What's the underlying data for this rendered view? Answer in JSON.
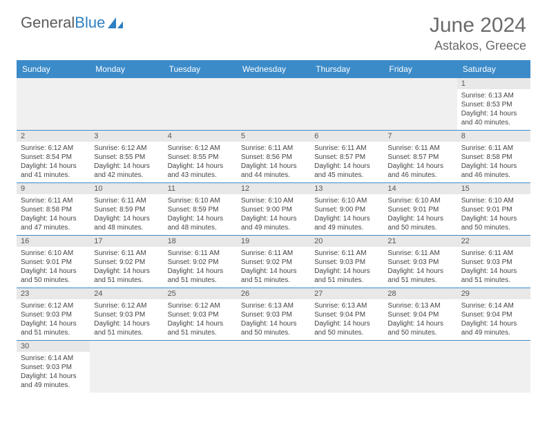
{
  "brand": {
    "part1": "General",
    "part2": "Blue"
  },
  "title": "June 2024",
  "location": "Astakos, Greece",
  "colors": {
    "headerBg": "#3b8bc9",
    "headerText": "#ffffff",
    "dayBarBg": "#e8e8e8",
    "emptyBg": "#f0f0f0",
    "borderColor": "#3b8bc9",
    "bodyText": "#444444",
    "titleText": "#6a6a6a"
  },
  "dayNames": [
    "Sunday",
    "Monday",
    "Tuesday",
    "Wednesday",
    "Thursday",
    "Friday",
    "Saturday"
  ],
  "weeks": [
    [
      null,
      null,
      null,
      null,
      null,
      null,
      {
        "n": "1",
        "sr": "Sunrise: 6:13 AM",
        "ss": "Sunset: 8:53 PM",
        "d1": "Daylight: 14 hours",
        "d2": "and 40 minutes."
      }
    ],
    [
      {
        "n": "2",
        "sr": "Sunrise: 6:12 AM",
        "ss": "Sunset: 8:54 PM",
        "d1": "Daylight: 14 hours",
        "d2": "and 41 minutes."
      },
      {
        "n": "3",
        "sr": "Sunrise: 6:12 AM",
        "ss": "Sunset: 8:55 PM",
        "d1": "Daylight: 14 hours",
        "d2": "and 42 minutes."
      },
      {
        "n": "4",
        "sr": "Sunrise: 6:12 AM",
        "ss": "Sunset: 8:55 PM",
        "d1": "Daylight: 14 hours",
        "d2": "and 43 minutes."
      },
      {
        "n": "5",
        "sr": "Sunrise: 6:11 AM",
        "ss": "Sunset: 8:56 PM",
        "d1": "Daylight: 14 hours",
        "d2": "and 44 minutes."
      },
      {
        "n": "6",
        "sr": "Sunrise: 6:11 AM",
        "ss": "Sunset: 8:57 PM",
        "d1": "Daylight: 14 hours",
        "d2": "and 45 minutes."
      },
      {
        "n": "7",
        "sr": "Sunrise: 6:11 AM",
        "ss": "Sunset: 8:57 PM",
        "d1": "Daylight: 14 hours",
        "d2": "and 46 minutes."
      },
      {
        "n": "8",
        "sr": "Sunrise: 6:11 AM",
        "ss": "Sunset: 8:58 PM",
        "d1": "Daylight: 14 hours",
        "d2": "and 46 minutes."
      }
    ],
    [
      {
        "n": "9",
        "sr": "Sunrise: 6:11 AM",
        "ss": "Sunset: 8:58 PM",
        "d1": "Daylight: 14 hours",
        "d2": "and 47 minutes."
      },
      {
        "n": "10",
        "sr": "Sunrise: 6:11 AM",
        "ss": "Sunset: 8:59 PM",
        "d1": "Daylight: 14 hours",
        "d2": "and 48 minutes."
      },
      {
        "n": "11",
        "sr": "Sunrise: 6:10 AM",
        "ss": "Sunset: 8:59 PM",
        "d1": "Daylight: 14 hours",
        "d2": "and 48 minutes."
      },
      {
        "n": "12",
        "sr": "Sunrise: 6:10 AM",
        "ss": "Sunset: 9:00 PM",
        "d1": "Daylight: 14 hours",
        "d2": "and 49 minutes."
      },
      {
        "n": "13",
        "sr": "Sunrise: 6:10 AM",
        "ss": "Sunset: 9:00 PM",
        "d1": "Daylight: 14 hours",
        "d2": "and 49 minutes."
      },
      {
        "n": "14",
        "sr": "Sunrise: 6:10 AM",
        "ss": "Sunset: 9:01 PM",
        "d1": "Daylight: 14 hours",
        "d2": "and 50 minutes."
      },
      {
        "n": "15",
        "sr": "Sunrise: 6:10 AM",
        "ss": "Sunset: 9:01 PM",
        "d1": "Daylight: 14 hours",
        "d2": "and 50 minutes."
      }
    ],
    [
      {
        "n": "16",
        "sr": "Sunrise: 6:10 AM",
        "ss": "Sunset: 9:01 PM",
        "d1": "Daylight: 14 hours",
        "d2": "and 50 minutes."
      },
      {
        "n": "17",
        "sr": "Sunrise: 6:11 AM",
        "ss": "Sunset: 9:02 PM",
        "d1": "Daylight: 14 hours",
        "d2": "and 51 minutes."
      },
      {
        "n": "18",
        "sr": "Sunrise: 6:11 AM",
        "ss": "Sunset: 9:02 PM",
        "d1": "Daylight: 14 hours",
        "d2": "and 51 minutes."
      },
      {
        "n": "19",
        "sr": "Sunrise: 6:11 AM",
        "ss": "Sunset: 9:02 PM",
        "d1": "Daylight: 14 hours",
        "d2": "and 51 minutes."
      },
      {
        "n": "20",
        "sr": "Sunrise: 6:11 AM",
        "ss": "Sunset: 9:03 PM",
        "d1": "Daylight: 14 hours",
        "d2": "and 51 minutes."
      },
      {
        "n": "21",
        "sr": "Sunrise: 6:11 AM",
        "ss": "Sunset: 9:03 PM",
        "d1": "Daylight: 14 hours",
        "d2": "and 51 minutes."
      },
      {
        "n": "22",
        "sr": "Sunrise: 6:11 AM",
        "ss": "Sunset: 9:03 PM",
        "d1": "Daylight: 14 hours",
        "d2": "and 51 minutes."
      }
    ],
    [
      {
        "n": "23",
        "sr": "Sunrise: 6:12 AM",
        "ss": "Sunset: 9:03 PM",
        "d1": "Daylight: 14 hours",
        "d2": "and 51 minutes."
      },
      {
        "n": "24",
        "sr": "Sunrise: 6:12 AM",
        "ss": "Sunset: 9:03 PM",
        "d1": "Daylight: 14 hours",
        "d2": "and 51 minutes."
      },
      {
        "n": "25",
        "sr": "Sunrise: 6:12 AM",
        "ss": "Sunset: 9:03 PM",
        "d1": "Daylight: 14 hours",
        "d2": "and 51 minutes."
      },
      {
        "n": "26",
        "sr": "Sunrise: 6:13 AM",
        "ss": "Sunset: 9:03 PM",
        "d1": "Daylight: 14 hours",
        "d2": "and 50 minutes."
      },
      {
        "n": "27",
        "sr": "Sunrise: 6:13 AM",
        "ss": "Sunset: 9:04 PM",
        "d1": "Daylight: 14 hours",
        "d2": "and 50 minutes."
      },
      {
        "n": "28",
        "sr": "Sunrise: 6:13 AM",
        "ss": "Sunset: 9:04 PM",
        "d1": "Daylight: 14 hours",
        "d2": "and 50 minutes."
      },
      {
        "n": "29",
        "sr": "Sunrise: 6:14 AM",
        "ss": "Sunset: 9:04 PM",
        "d1": "Daylight: 14 hours",
        "d2": "and 49 minutes."
      }
    ],
    [
      {
        "n": "30",
        "sr": "Sunrise: 6:14 AM",
        "ss": "Sunset: 9:03 PM",
        "d1": "Daylight: 14 hours",
        "d2": "and 49 minutes."
      },
      null,
      null,
      null,
      null,
      null,
      null
    ]
  ]
}
